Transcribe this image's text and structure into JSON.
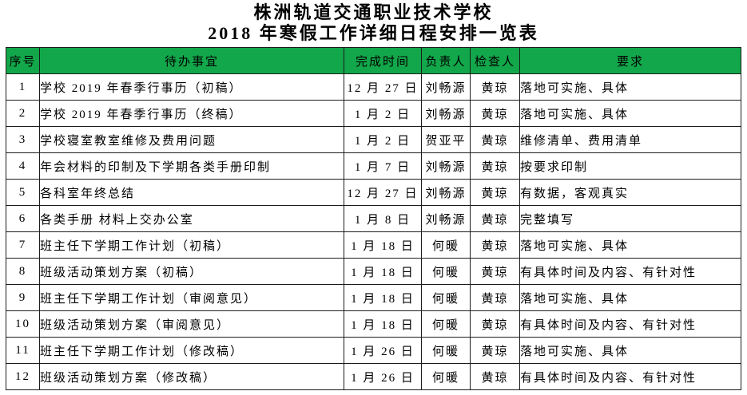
{
  "title": {
    "line1": "株洲轨道交通职业技术学校",
    "line2": "2018 年寒假工作详细日程安排一览表"
  },
  "colors": {
    "header_bg": "#12a74a",
    "border": "#1c1c1c",
    "text": "#000000",
    "background": "#ffffff"
  },
  "table": {
    "headers": [
      "序号",
      "待办事宜",
      "完成时间",
      "负责人",
      "检查人",
      "要求"
    ],
    "rows": [
      [
        "1",
        "学校 2019 年春季行事历（初稿）",
        "12 月 27 日",
        "刘畅源",
        "黄琼",
        "落地可实施、具体"
      ],
      [
        "2",
        "学校 2019 年春季行事历（终稿）",
        "1 月 2 日",
        "刘畅源",
        "黄琼",
        "落地可实施、具体"
      ],
      [
        "3",
        "学校寝室教室维修及费用问题",
        "1 月 2 日",
        "贺亚平",
        "黄琼",
        "维修清单、费用清单"
      ],
      [
        "4",
        "年会材料的印制及下学期各类手册印制",
        "1 月 7 日",
        "刘畅源",
        "黄琼",
        "按要求印制"
      ],
      [
        "5",
        "各科室年终总结",
        "12 月 27 日",
        "刘畅源",
        "黄琼",
        "有数据，客观真实"
      ],
      [
        "6",
        "各类手册 材料上交办公室",
        "1 月 8 日",
        "刘畅源",
        "黄琼",
        "完整填写"
      ],
      [
        "7",
        "班主任下学期工作计划（初稿）",
        "1 月 18 日",
        "何暖",
        "黄琼",
        "落地可实施、具体"
      ],
      [
        "8",
        "班级活动策划方案（初稿）",
        "1 月 18 日",
        "何暖",
        "黄琼",
        "有具体时间及内容、有针对性"
      ],
      [
        "9",
        "班主任下学期工作计划（审阅意见）",
        "1 月 18 日",
        "何暖",
        "黄琼",
        "落地可实施、具体"
      ],
      [
        "10",
        "班级活动策划方案（审阅意见）",
        "1 月 18 日",
        "何暖",
        "黄琼",
        "有具体时间及内容、有针对性"
      ],
      [
        "11",
        "班主任下学期工作计划（修改稿）",
        "1 月 26 日",
        "何暖",
        "黄琼",
        "落地可实施、具体"
      ],
      [
        "12",
        "班级活动策划方案（修改稿）",
        "1 月 26 日",
        "何暖",
        "黄琼",
        "有具体时间及内容、有针对性"
      ]
    ]
  }
}
